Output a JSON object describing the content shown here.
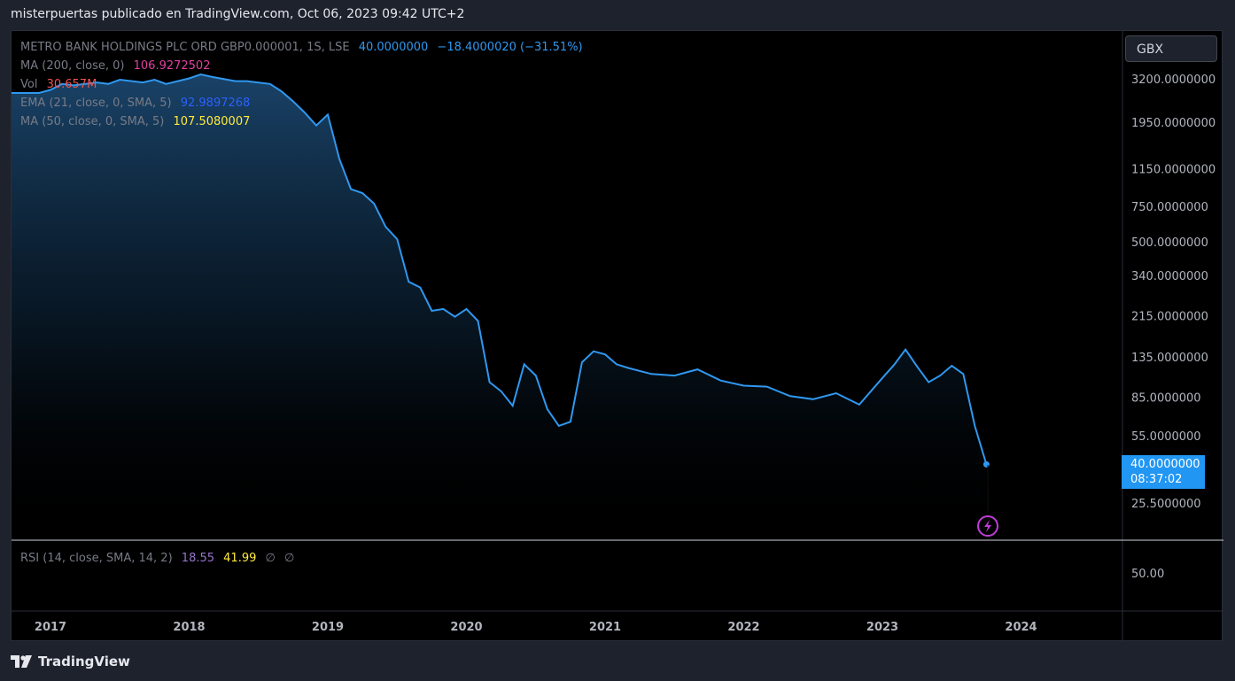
{
  "header": {
    "title": "misterpuertas publicado en TradingView.com, Oct 06, 2023 09:42 UTC+2"
  },
  "legend": {
    "symbol": "METRO BANK HOLDINGS PLC ORD GBP0.000001, 1S, LSE",
    "price": "40.0000000",
    "change": "−18.4000020 (−31.51%)",
    "ma200_label": "MA (200, close, 0)",
    "ma200_value": "106.9272502",
    "vol_label": "Vol",
    "vol_value": "30.657M",
    "ema_label": "EMA (21, close, 0, SMA, 5)",
    "ema_value": "92.9897268",
    "ma50_label": "MA (50, close, 0, SMA, 5)",
    "ma50_value": "107.5080007",
    "rsi_label": "RSI (14, close, SMA, 14, 2)",
    "rsi_value": "18.55",
    "rsi_ma_value": "41.99",
    "rsi_null1": "∅",
    "rsi_null2": "∅"
  },
  "currency": "GBX",
  "price_label": {
    "price": "40.0000000",
    "countdown": "08:37:02"
  },
  "footer": {
    "brand": "TradingView"
  },
  "colors": {
    "line": "#2f98f0",
    "ma200": "#e040a0",
    "vol": "#ef5350",
    "ema": "#2962ff",
    "ma50": "#ffeb3b",
    "rsi": "#9575cd",
    "accent": "#2196f3"
  },
  "chart_data": {
    "type": "area",
    "scale": "log",
    "x_axis_labels": [
      "2017",
      "2018",
      "2019",
      "2020",
      "2021",
      "2022",
      "2023",
      "2024"
    ],
    "y_axis_labels": [
      "3200.0000000",
      "1950.0000000",
      "1150.0000000",
      "750.0000000",
      "500.0000000",
      "340.0000000",
      "215.0000000",
      "135.0000000",
      "85.0000000",
      "55.0000000",
      "25.5000000"
    ],
    "y_axis_values": [
      3200,
      1950,
      1150,
      750,
      500,
      340,
      215,
      135,
      85,
      55,
      25.5
    ],
    "rsi_axis_labels": [
      "50.00"
    ],
    "series": [
      {
        "x": [
          "2016-11",
          "2016-12",
          "2017-01",
          "2017-02",
          "2017-03",
          "2017-05",
          "2017-06",
          "2017-07",
          "2017-09",
          "2017-10",
          "2017-11",
          "2018-01",
          "2018-02",
          "2018-03",
          "2018-05",
          "2018-06",
          "2018-08",
          "2018-09",
          "2018-10",
          "2018-11",
          "2018-12",
          "2019-01",
          "2019-02",
          "2019-03",
          "2019-04",
          "2019-05",
          "2019-06",
          "2019-07",
          "2019-08",
          "2019-09",
          "2019-10",
          "2019-11",
          "2019-12",
          "2020-01",
          "2020-02",
          "2020-03",
          "2020-04",
          "2020-05",
          "2020-06",
          "2020-07",
          "2020-08",
          "2020-09",
          "2020-10",
          "2020-11",
          "2020-12",
          "2021-01",
          "2021-02",
          "2021-03",
          "2021-05",
          "2021-07",
          "2021-09",
          "2021-11",
          "2022-01",
          "2022-03",
          "2022-05",
          "2022-07",
          "2022-09",
          "2022-11",
          "2023-01",
          "2023-02",
          "2023-03",
          "2023-04",
          "2023-05",
          "2023-06",
          "2023-07",
          "2023-08",
          "2023-09",
          "2023-10"
        ],
        "y": [
          2750,
          2750,
          2850,
          3050,
          3000,
          3100,
          3050,
          3200,
          3100,
          3200,
          3050,
          3250,
          3400,
          3300,
          3150,
          3150,
          3050,
          2800,
          2500,
          2200,
          1900,
          2150,
          1300,
          920,
          880,
          780,
          600,
          520,
          320,
          300,
          230,
          235,
          215,
          235,
          205,
          102,
          92,
          78,
          125,
          110,
          75,
          62,
          65,
          128,
          145,
          140,
          125,
          120,
          112,
          110,
          118,
          104,
          98,
          97,
          87,
          84,
          90,
          79,
          107,
          124,
          148,
          122,
          102,
          110,
          123,
          112,
          62,
          40
        ]
      }
    ],
    "last_price": 40
  }
}
